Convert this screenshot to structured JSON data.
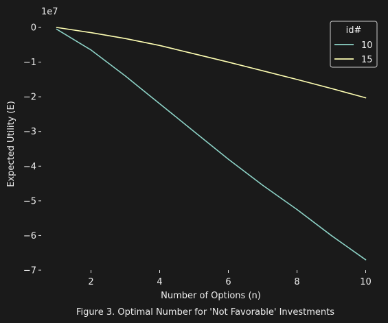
{
  "chart_data": {
    "type": "line",
    "title": "",
    "caption": "Figure 3. Optimal Number for 'Not Favorable' Investments",
    "xlabel": "Number of Options (n)",
    "ylabel": "Expected Utility (E)",
    "y_offset_label": "1e7",
    "y_scale_factor": 10000000,
    "xlim": [
      0.55,
      10.45
    ],
    "ylim": [
      -70000000,
      0
    ],
    "xticks": [
      2,
      4,
      6,
      8,
      10
    ],
    "yticks": [
      0,
      -10000000,
      -20000000,
      -30000000,
      -40000000,
      -50000000,
      -60000000,
      -70000000
    ],
    "ytick_labels": [
      "0",
      "−1",
      "−2",
      "−3",
      "−4",
      "−5",
      "−6",
      "−7"
    ],
    "grid": false,
    "legend": {
      "title": "id#",
      "placement": "top-right"
    },
    "x": [
      1,
      2,
      3,
      4,
      5,
      6,
      7,
      8,
      9,
      10
    ],
    "series": [
      {
        "name": "10",
        "color": "#8dd3c7",
        "values": [
          -500000,
          -6500000,
          -14000000,
          -22000000,
          -30000000,
          -38000000,
          -45500000,
          -52500000,
          -60000000,
          -67000000
        ]
      },
      {
        "name": "15",
        "color": "#ffffb3",
        "values": [
          0,
          -1500000,
          -3200000,
          -5200000,
          -7600000,
          -10000000,
          -12500000,
          -15000000,
          -17600000,
          -20300000
        ]
      }
    ]
  }
}
